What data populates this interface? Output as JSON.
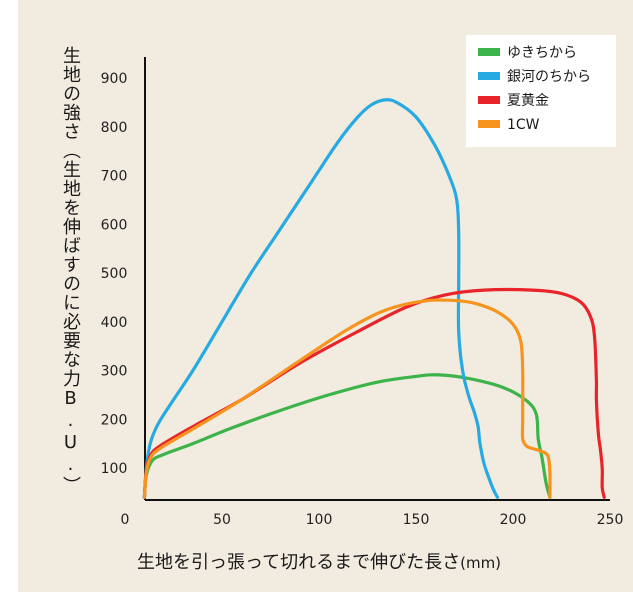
{
  "chart_data": {
    "type": "line",
    "xlabel": "生地を引っ張って切れるまで伸びた長さ",
    "xlabel_unit": "(mm)",
    "ylabel": "生地の強さ（生地を伸ばすのに必要な力B.U.）",
    "x_ticks": [
      "0",
      "50",
      "100",
      "150",
      "200",
      "250"
    ],
    "y_ticks": [
      "100",
      "200",
      "300",
      "400",
      "500",
      "600",
      "700",
      "800",
      "900"
    ],
    "xlim": [
      0,
      250
    ],
    "ylim": [
      40,
      950
    ],
    "grid": false,
    "legend_position": "top-right",
    "series": [
      {
        "name": "ゆきちから",
        "color": "#3cb44a",
        "points": [
          [
            10,
            40
          ],
          [
            11,
            85
          ],
          [
            14,
            115
          ],
          [
            20,
            128
          ],
          [
            35,
            150
          ],
          [
            55,
            182
          ],
          [
            80,
            218
          ],
          [
            105,
            250
          ],
          [
            130,
            276
          ],
          [
            150,
            288
          ],
          [
            162,
            291
          ],
          [
            178,
            283
          ],
          [
            195,
            265
          ],
          [
            207,
            238
          ],
          [
            212,
            210
          ],
          [
            213,
            160
          ],
          [
            215,
            120
          ],
          [
            217,
            70
          ],
          [
            219,
            40
          ]
        ]
      },
      {
        "name": "銀河のちから",
        "color": "#27aae1",
        "points": [
          [
            10,
            40
          ],
          [
            11,
            100
          ],
          [
            13,
            150
          ],
          [
            17,
            190
          ],
          [
            25,
            240
          ],
          [
            35,
            300
          ],
          [
            50,
            400
          ],
          [
            65,
            500
          ],
          [
            80,
            590
          ],
          [
            95,
            680
          ],
          [
            110,
            770
          ],
          [
            120,
            820
          ],
          [
            127,
            845
          ],
          [
            134,
            855
          ],
          [
            140,
            850
          ],
          [
            150,
            820
          ],
          [
            160,
            760
          ],
          [
            167,
            700
          ],
          [
            171,
            650
          ],
          [
            172,
            580
          ],
          [
            172,
            480
          ],
          [
            172,
            380
          ],
          [
            174,
            300
          ],
          [
            177,
            250
          ],
          [
            180,
            215
          ],
          [
            182,
            185
          ],
          [
            183,
            150
          ],
          [
            185,
            110
          ],
          [
            188,
            75
          ],
          [
            190,
            55
          ],
          [
            192,
            40
          ]
        ]
      },
      {
        "name": "夏黄金",
        "color": "#e8232a",
        "points": [
          [
            10,
            40
          ],
          [
            11,
            95
          ],
          [
            13,
            125
          ],
          [
            18,
            145
          ],
          [
            35,
            185
          ],
          [
            60,
            240
          ],
          [
            90,
            315
          ],
          [
            120,
            380
          ],
          [
            145,
            430
          ],
          [
            165,
            455
          ],
          [
            185,
            465
          ],
          [
            210,
            465
          ],
          [
            225,
            458
          ],
          [
            235,
            440
          ],
          [
            240,
            410
          ],
          [
            242,
            370
          ],
          [
            243,
            280
          ],
          [
            243,
            240
          ],
          [
            244,
            170
          ],
          [
            245,
            140
          ],
          [
            246,
            100
          ],
          [
            246,
            60
          ],
          [
            247,
            40
          ]
        ]
      },
      {
        "name": "1CW",
        "color": "#f7941d",
        "points": [
          [
            10,
            40
          ],
          [
            11,
            90
          ],
          [
            13,
            120
          ],
          [
            18,
            140
          ],
          [
            35,
            180
          ],
          [
            60,
            240
          ],
          [
            90,
            320
          ],
          [
            115,
            385
          ],
          [
            135,
            425
          ],
          [
            155,
            443
          ],
          [
            172,
            443
          ],
          [
            182,
            436
          ],
          [
            192,
            420
          ],
          [
            200,
            395
          ],
          [
            204,
            360
          ],
          [
            205,
            300
          ],
          [
            205,
            245
          ],
          [
            205,
            200
          ],
          [
            205,
            160
          ],
          [
            207,
            145
          ],
          [
            210,
            140
          ],
          [
            214,
            135
          ],
          [
            218,
            125
          ],
          [
            219,
            90
          ],
          [
            219,
            40
          ]
        ]
      }
    ]
  }
}
